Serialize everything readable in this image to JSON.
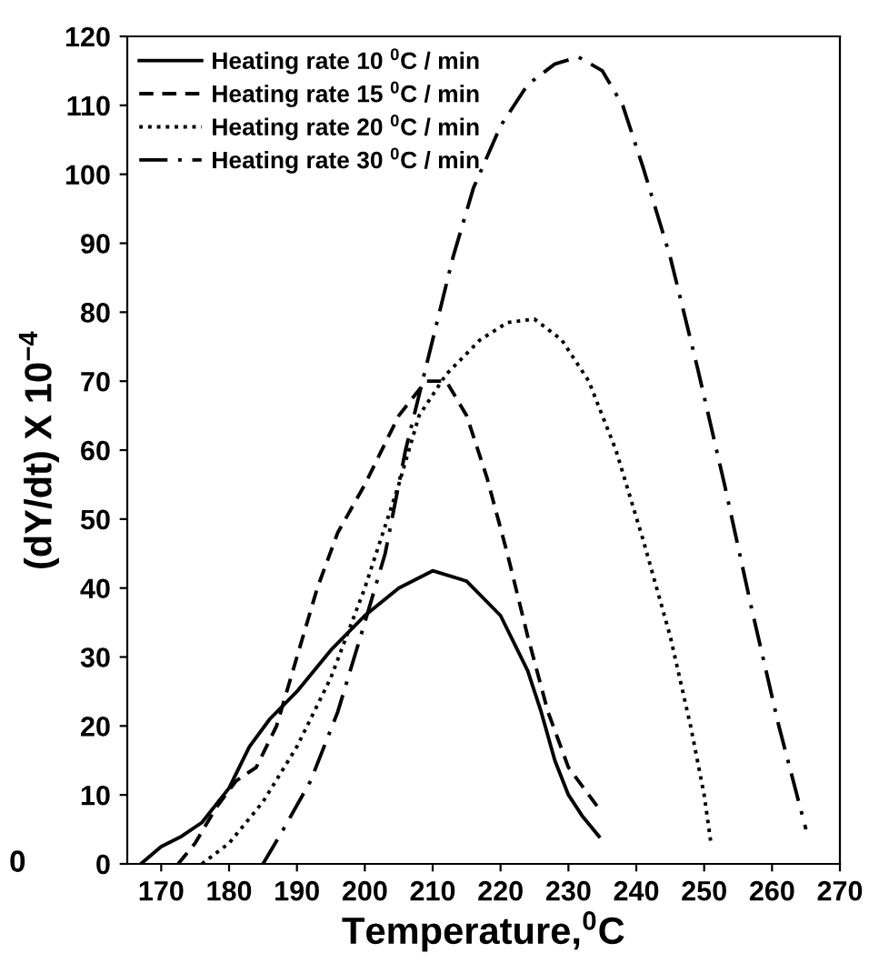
{
  "chart_data": {
    "type": "line",
    "xlabel": "Temperature,$^{0}$C",
    "ylabel": "(dY/dt) X 10$^{−4}$",
    "xlim": [
      165,
      270
    ],
    "xticks": [
      170,
      180,
      190,
      200,
      210,
      220,
      230,
      240,
      250,
      260,
      270
    ],
    "ylim": [
      0,
      120
    ],
    "yticks": [
      0,
      10,
      20,
      30,
      40,
      50,
      60,
      70,
      80,
      90,
      100,
      110,
      120
    ],
    "grid": false,
    "legend": "top left",
    "marker": "none",
    "annotations": [
      "0"
    ],
    "series": [
      {
        "name": "Heating rate 10 $^{0}$C / min",
        "color": "#000000",
        "line_style": "solid",
        "x": [
          167,
          170,
          173,
          176,
          180,
          183,
          186,
          190,
          195,
          200,
          205,
          210,
          215,
          220,
          224,
          226,
          228,
          230,
          232,
          234.5
        ],
        "values": [
          0,
          2.5,
          4,
          6,
          11,
          17,
          21,
          25,
          31,
          36,
          40,
          42.5,
          41,
          36,
          28,
          22,
          15,
          10,
          7,
          4
        ]
      },
      {
        "name": "Heating rate 15 $^{0}$C / min",
        "color": "#000000",
        "line_style": "dashed",
        "x": [
          172.5,
          175,
          178,
          181,
          184,
          187,
          190,
          193,
          196,
          200,
          205,
          209,
          212,
          215,
          218,
          221,
          224,
          227,
          230,
          234.5
        ],
        "values": [
          0,
          3,
          8,
          12,
          14,
          20,
          30,
          40,
          48,
          55,
          65,
          70,
          70,
          65,
          56,
          45,
          33,
          22,
          14,
          8
        ]
      },
      {
        "name": "Heating rate 20 $^{0}$C / min",
        "color": "#000000",
        "line_style": "dotted",
        "x": [
          176,
          180,
          185,
          190,
          195,
          200,
          205,
          208,
          212,
          217,
          221,
          225,
          229,
          233,
          237,
          241,
          245,
          248,
          250,
          251
        ],
        "values": [
          0,
          3,
          9,
          17,
          27,
          40,
          55,
          65,
          71,
          76,
          78.5,
          79,
          76,
          70,
          60,
          47,
          33,
          20,
          10,
          3
        ]
      },
      {
        "name": "Heating rate 30 $^{0}$C / min",
        "color": "#000000",
        "line_style": "dashdot",
        "x": [
          185,
          188,
          192,
          196,
          200,
          203,
          206,
          209,
          213,
          216,
          220,
          224,
          228,
          231.5,
          235,
          238,
          241,
          245,
          249,
          253,
          257,
          261,
          265
        ],
        "values": [
          0,
          5,
          12,
          22,
          35,
          45,
          60,
          72,
          88,
          98,
          107,
          113,
          116,
          117,
          115,
          110,
          101,
          88,
          72,
          55,
          37,
          20,
          5
        ]
      }
    ]
  }
}
